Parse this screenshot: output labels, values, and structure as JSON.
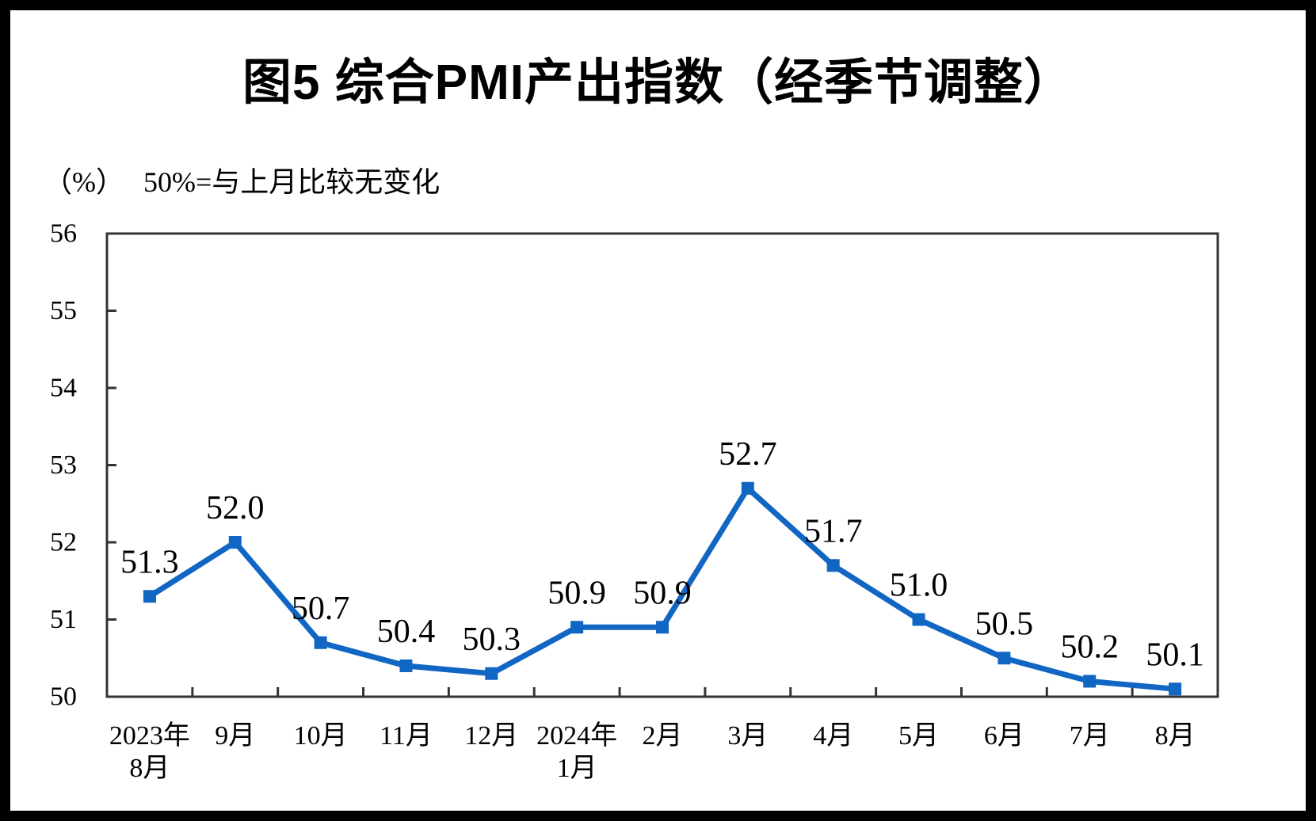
{
  "page": {
    "background": "#ffffff",
    "frame_color": "#000000"
  },
  "header": {
    "title": "图5 综合PMI产出指数（经季节调整）",
    "unit_label": "（%）",
    "reference_note": "50%=与上月比较无变化"
  },
  "chart_data": {
    "type": "line",
    "title": "图5 综合PMI产出指数（经季节调整）",
    "subtitle": "（%） 50%=与上月比较无变化",
    "categories": [
      "2023年\n8月",
      "9月",
      "10月",
      "11月",
      "12月",
      "2024年\n1月",
      "2月",
      "3月",
      "4月",
      "5月",
      "6月",
      "7月",
      "8月"
    ],
    "values": [
      51.3,
      52.0,
      50.7,
      50.4,
      50.3,
      50.9,
      50.9,
      52.7,
      51.7,
      51.0,
      50.5,
      50.2,
      50.1
    ],
    "ylabel": "%",
    "ylim": [
      50,
      56
    ],
    "ytick_step": 1,
    "yticks": [
      "50",
      "51",
      "52",
      "53",
      "54",
      "55",
      "56"
    ],
    "grid": false,
    "legend": "none",
    "data_labels_shown": true,
    "marker": "square",
    "line_color": "#1166c4",
    "axis_color": "#333333",
    "text_color": "#000000"
  }
}
